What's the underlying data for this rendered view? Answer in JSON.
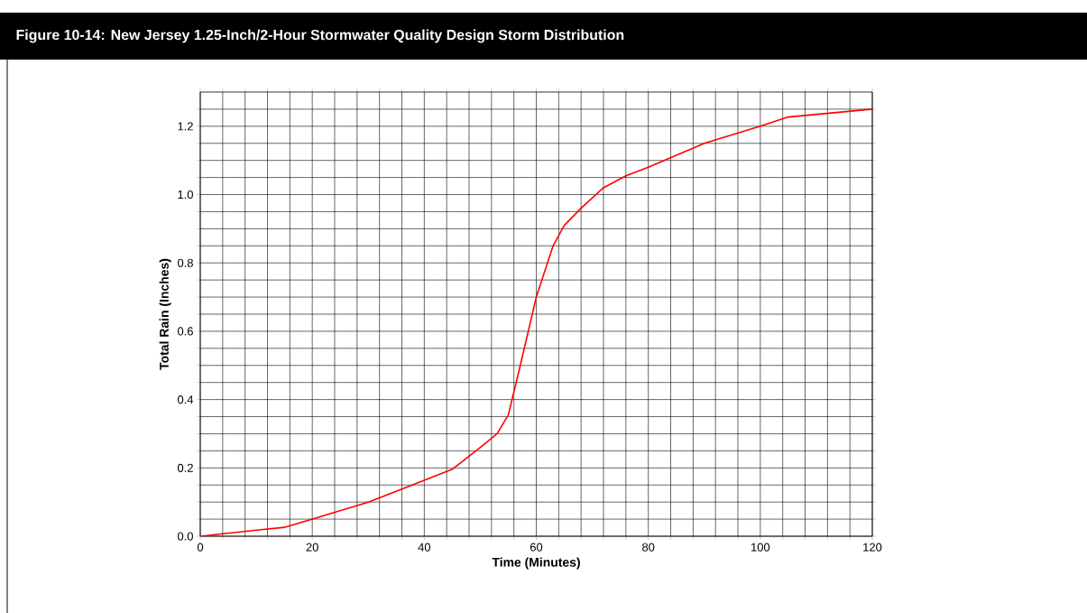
{
  "chart_data": {
    "type": "line",
    "title": "Figure 10-14: New Jersey 1.25-Inch/2-Hour Stormwater Quality Design Storm Distribution",
    "xlabel": "Time (Minutes)",
    "ylabel": "Total Rain (Inches)",
    "x": [
      0,
      10,
      15,
      20,
      30,
      40,
      45,
      50,
      53,
      55,
      57,
      60,
      63,
      65,
      68,
      72,
      76,
      80,
      90,
      100,
      105,
      120
    ],
    "series": [
      {
        "color": "#ff0000",
        "values": [
          0,
          0.018,
          0.026,
          0.05,
          0.1,
          0.164,
          0.196,
          0.26,
          0.3,
          0.355,
          0.49,
          0.7,
          0.85,
          0.91,
          0.96,
          1.02,
          1.055,
          1.08,
          1.15,
          1.2,
          1.227,
          1.25
        ]
      }
    ],
    "xlim": [
      0,
      120
    ],
    "ylim": [
      0,
      1.3
    ],
    "xticks": [
      0,
      {
        "value": 4,
        "label": null
      },
      {
        "value": 8,
        "label": null
      },
      {
        "value": 12,
        "label": null
      },
      {
        "value": 16,
        "label": null
      },
      20,
      {
        "value": 24,
        "label": null
      },
      {
        "value": 28,
        "label": null
      },
      {
        "value": 32,
        "label": null
      },
      {
        "value": 36,
        "label": null
      },
      40,
      {
        "value": 44,
        "label": null
      },
      {
        "value": 48,
        "label": null
      },
      {
        "value": 52,
        "label": null
      },
      {
        "value": 56,
        "label": null
      },
      60,
      {
        "value": 64,
        "label": null
      },
      {
        "value": 68,
        "label": null
      },
      {
        "value": 72,
        "label": null
      },
      {
        "value": 76,
        "label": null
      },
      80,
      {
        "value": 84,
        "label": null
      },
      {
        "value": 88,
        "label": null
      },
      {
        "value": 92,
        "label": null
      },
      {
        "value": 96,
        "label": null
      },
      100,
      {
        "value": 104,
        "label": null
      },
      {
        "value": 108,
        "label": null
      },
      {
        "value": 112,
        "label": null
      },
      {
        "value": 116,
        "label": null
      },
      120
    ],
    "yticks": [
      {
        "value": 0,
        "label": "0.0"
      },
      {
        "value": 0.05,
        "label": null
      },
      {
        "value": 0.1,
        "label": null
      },
      {
        "value": 0.15,
        "label": null
      },
      {
        "value": 0.2,
        "label": "0.2"
      },
      {
        "value": 0.25,
        "label": null
      },
      {
        "value": 0.3,
        "label": null
      },
      {
        "value": 0.35,
        "label": null
      },
      {
        "value": 0.4,
        "label": "0.4"
      },
      {
        "value": 0.45,
        "label": null
      },
      {
        "value": 0.5,
        "label": null
      },
      {
        "value": 0.55,
        "label": null
      },
      {
        "value": 0.6,
        "label": "0.6"
      },
      {
        "value": 0.65,
        "label": null
      },
      {
        "value": 0.7,
        "label": null
      },
      {
        "value": 0.75,
        "label": null
      },
      {
        "value": 0.8,
        "label": "0.8"
      },
      {
        "value": 0.85,
        "label": null
      },
      {
        "value": 0.9,
        "label": null
      },
      {
        "value": 0.95,
        "label": null
      },
      {
        "value": 1.0,
        "label": "1.0"
      },
      {
        "value": 1.05,
        "label": null
      },
      {
        "value": 1.1,
        "label": null
      },
      {
        "value": 1.15,
        "label": null
      },
      {
        "value": 1.2,
        "label": "1.2"
      },
      {
        "value": 1.25,
        "label": null
      }
    ],
    "grid": true
  }
}
